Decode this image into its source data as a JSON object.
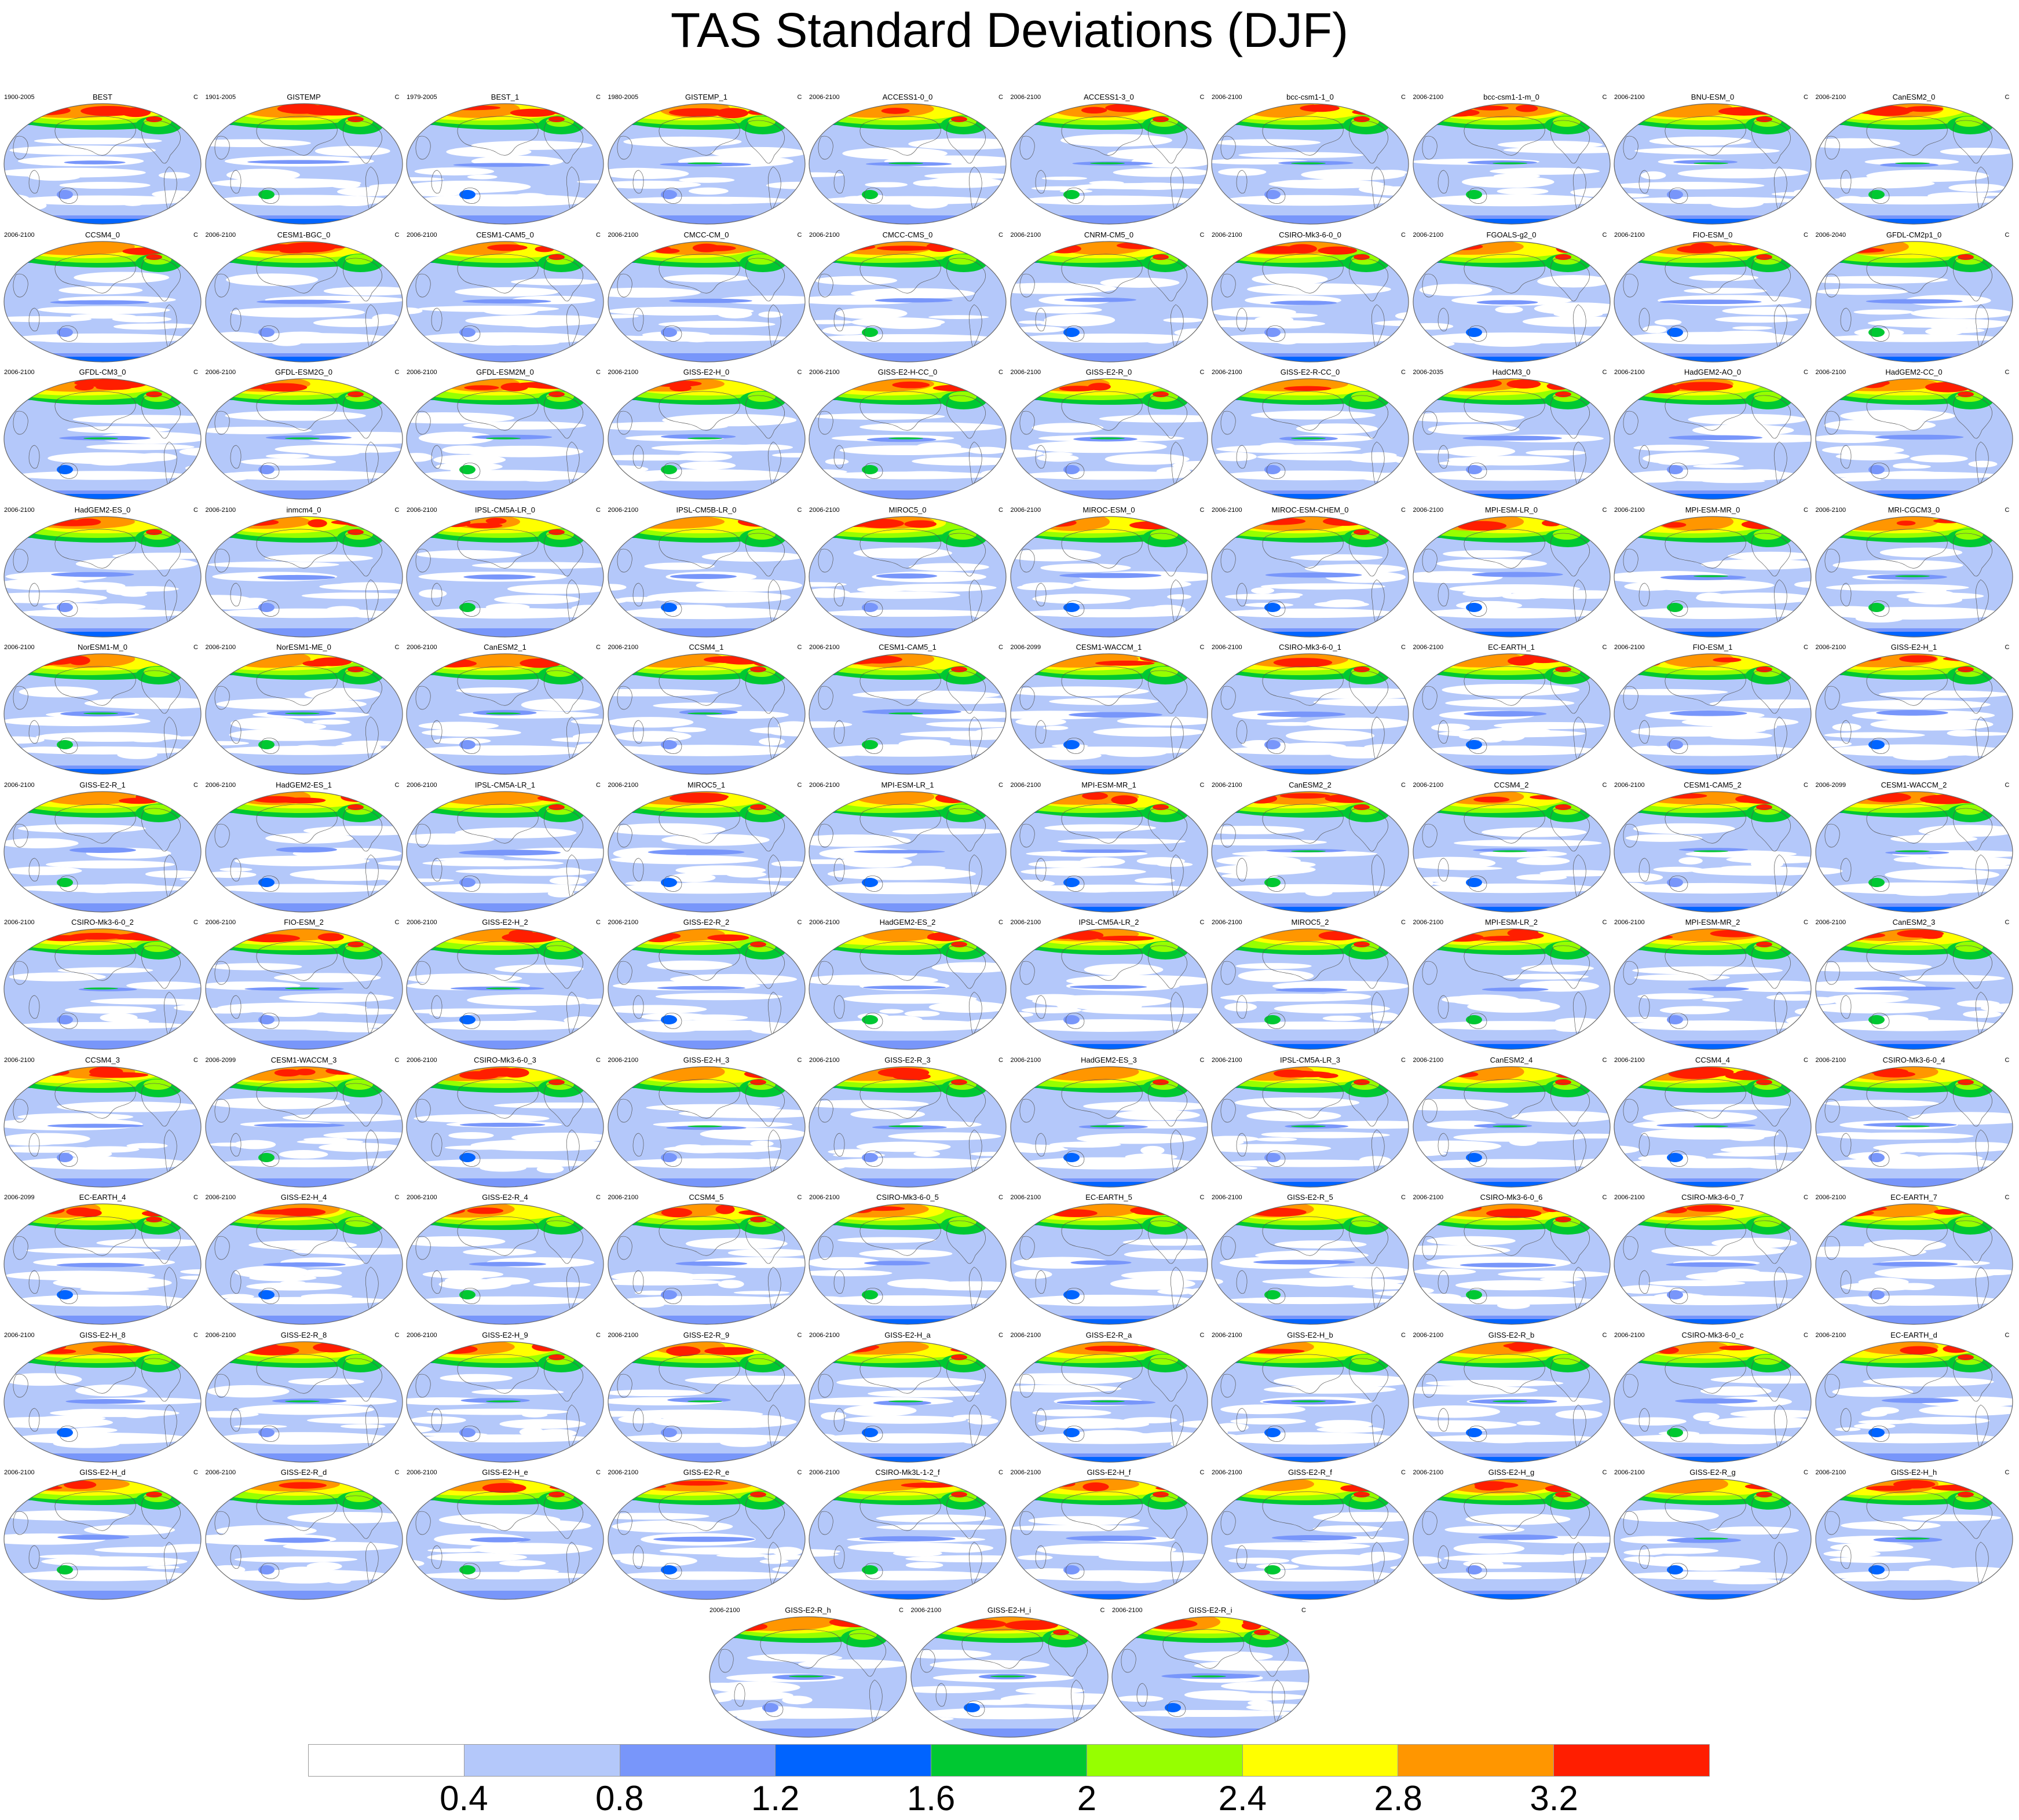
{
  "title": "TAS Standard Deviations (DJF)",
  "units": "C",
  "chart_data": {
    "type": "heatmap",
    "title": "TAS Standard Deviations (DJF)",
    "units": "C",
    "projection": "global Robinson-style, Pacific-centered",
    "panels": [
      {
        "name": "BEST",
        "period": "1900-2005"
      },
      {
        "name": "GISTEMP",
        "period": "1901-2005"
      },
      {
        "name": "BEST_1",
        "period": "1979-2005"
      },
      {
        "name": "GISTEMP_1",
        "period": "1980-2005"
      },
      {
        "name": "ACCESS1-0_0",
        "period": "2006-2100"
      },
      {
        "name": "ACCESS1-3_0",
        "period": "2006-2100"
      },
      {
        "name": "bcc-csm1-1_0",
        "period": "2006-2100"
      },
      {
        "name": "bcc-csm1-1-m_0",
        "period": "2006-2100"
      },
      {
        "name": "BNU-ESM_0",
        "period": "2006-2100"
      },
      {
        "name": "CanESM2_0",
        "period": "2006-2100"
      },
      {
        "name": "CCSM4_0",
        "period": "2006-2100"
      },
      {
        "name": "CESM1-BGC_0",
        "period": "2006-2100"
      },
      {
        "name": "CESM1-CAM5_0",
        "period": "2006-2100"
      },
      {
        "name": "CMCC-CM_0",
        "period": "2006-2100"
      },
      {
        "name": "CMCC-CMS_0",
        "period": "2006-2100"
      },
      {
        "name": "CNRM-CM5_0",
        "period": "2006-2100"
      },
      {
        "name": "CSIRO-Mk3-6-0_0",
        "period": "2006-2100"
      },
      {
        "name": "FGOALS-g2_0",
        "period": "2006-2100"
      },
      {
        "name": "FIO-ESM_0",
        "period": "2006-2100"
      },
      {
        "name": "GFDL-CM2p1_0",
        "period": "2006-2040"
      },
      {
        "name": "GFDL-CM3_0",
        "period": "2006-2100"
      },
      {
        "name": "GFDL-ESM2G_0",
        "period": "2006-2100"
      },
      {
        "name": "GFDL-ESM2M_0",
        "period": "2006-2100"
      },
      {
        "name": "GISS-E2-H_0",
        "period": "2006-2100"
      },
      {
        "name": "GISS-E2-H-CC_0",
        "period": "2006-2100"
      },
      {
        "name": "GISS-E2-R_0",
        "period": "2006-2100"
      },
      {
        "name": "GISS-E2-R-CC_0",
        "period": "2006-2100"
      },
      {
        "name": "HadCM3_0",
        "period": "2006-2035"
      },
      {
        "name": "HadGEM2-AO_0",
        "period": "2006-2100"
      },
      {
        "name": "HadGEM2-CC_0",
        "period": "2006-2100"
      },
      {
        "name": "HadGEM2-ES_0",
        "period": "2006-2100"
      },
      {
        "name": "inmcm4_0",
        "period": "2006-2100"
      },
      {
        "name": "IPSL-CM5A-LR_0",
        "period": "2006-2100"
      },
      {
        "name": "IPSL-CM5B-LR_0",
        "period": "2006-2100"
      },
      {
        "name": "MIROC5_0",
        "period": "2006-2100"
      },
      {
        "name": "MIROC-ESM_0",
        "period": "2006-2100"
      },
      {
        "name": "MIROC-ESM-CHEM_0",
        "period": "2006-2100"
      },
      {
        "name": "MPI-ESM-LR_0",
        "period": "2006-2100"
      },
      {
        "name": "MPI-ESM-MR_0",
        "period": "2006-2100"
      },
      {
        "name": "MRI-CGCM3_0",
        "period": "2006-2100"
      },
      {
        "name": "NorESM1-M_0",
        "period": "2006-2100"
      },
      {
        "name": "NorESM1-ME_0",
        "period": "2006-2100"
      },
      {
        "name": "CanESM2_1",
        "period": "2006-2100"
      },
      {
        "name": "CCSM4_1",
        "period": "2006-2100"
      },
      {
        "name": "CESM1-CAM5_1",
        "period": "2006-2100"
      },
      {
        "name": "CESM1-WACCM_1",
        "period": "2006-2099"
      },
      {
        "name": "CSIRO-Mk3-6-0_1",
        "period": "2006-2100"
      },
      {
        "name": "EC-EARTH_1",
        "period": "2006-2100"
      },
      {
        "name": "FIO-ESM_1",
        "period": "2006-2100"
      },
      {
        "name": "GISS-E2-H_1",
        "period": "2006-2100"
      },
      {
        "name": "GISS-E2-R_1",
        "period": "2006-2100"
      },
      {
        "name": "HadGEM2-ES_1",
        "period": "2006-2100"
      },
      {
        "name": "IPSL-CM5A-LR_1",
        "period": "2006-2100"
      },
      {
        "name": "MIROC5_1",
        "period": "2006-2100"
      },
      {
        "name": "MPI-ESM-LR_1",
        "period": "2006-2100"
      },
      {
        "name": "MPI-ESM-MR_1",
        "period": "2006-2100"
      },
      {
        "name": "CanESM2_2",
        "period": "2006-2100"
      },
      {
        "name": "CCSM4_2",
        "period": "2006-2100"
      },
      {
        "name": "CESM1-CAM5_2",
        "period": "2006-2100"
      },
      {
        "name": "CESM1-WACCM_2",
        "period": "2006-2099"
      },
      {
        "name": "CSIRO-Mk3-6-0_2",
        "period": "2006-2100"
      },
      {
        "name": "FIO-ESM_2",
        "period": "2006-2100"
      },
      {
        "name": "GISS-E2-H_2",
        "period": "2006-2100"
      },
      {
        "name": "GISS-E2-R_2",
        "period": "2006-2100"
      },
      {
        "name": "HadGEM2-ES_2",
        "period": "2006-2100"
      },
      {
        "name": "IPSL-CM5A-LR_2",
        "period": "2006-2100"
      },
      {
        "name": "MIROC5_2",
        "period": "2006-2100"
      },
      {
        "name": "MPI-ESM-LR_2",
        "period": "2006-2100"
      },
      {
        "name": "MPI-ESM-MR_2",
        "period": "2006-2100"
      },
      {
        "name": "CanESM2_3",
        "period": "2006-2100"
      },
      {
        "name": "CCSM4_3",
        "period": "2006-2100"
      },
      {
        "name": "CESM1-WACCM_3",
        "period": "2006-2099"
      },
      {
        "name": "CSIRO-Mk3-6-0_3",
        "period": "2006-2100"
      },
      {
        "name": "GISS-E2-H_3",
        "period": "2006-2100"
      },
      {
        "name": "GISS-E2-R_3",
        "period": "2006-2100"
      },
      {
        "name": "HadGEM2-ES_3",
        "period": "2006-2100"
      },
      {
        "name": "IPSL-CM5A-LR_3",
        "period": "2006-2100"
      },
      {
        "name": "CanESM2_4",
        "period": "2006-2100"
      },
      {
        "name": "CCSM4_4",
        "period": "2006-2100"
      },
      {
        "name": "CSIRO-Mk3-6-0_4",
        "period": "2006-2100"
      },
      {
        "name": "EC-EARTH_4",
        "period": "2006-2099"
      },
      {
        "name": "GISS-E2-H_4",
        "period": "2006-2100"
      },
      {
        "name": "GISS-E2-R_4",
        "period": "2006-2100"
      },
      {
        "name": "CCSM4_5",
        "period": "2006-2100"
      },
      {
        "name": "CSIRO-Mk3-6-0_5",
        "period": "2006-2100"
      },
      {
        "name": "EC-EARTH_5",
        "period": "2006-2100"
      },
      {
        "name": "GISS-E2-R_5",
        "period": "2006-2100"
      },
      {
        "name": "CSIRO-Mk3-6-0_6",
        "period": "2006-2100"
      },
      {
        "name": "CSIRO-Mk3-6-0_7",
        "period": "2006-2100"
      },
      {
        "name": "EC-EARTH_7",
        "period": "2006-2100"
      },
      {
        "name": "GISS-E2-H_8",
        "period": "2006-2100"
      },
      {
        "name": "GISS-E2-R_8",
        "period": "2006-2100"
      },
      {
        "name": "GISS-E2-H_9",
        "period": "2006-2100"
      },
      {
        "name": "GISS-E2-R_9",
        "period": "2006-2100"
      },
      {
        "name": "GISS-E2-H_a",
        "period": "2006-2100"
      },
      {
        "name": "GISS-E2-R_a",
        "period": "2006-2100"
      },
      {
        "name": "GISS-E2-H_b",
        "period": "2006-2100"
      },
      {
        "name": "GISS-E2-R_b",
        "period": "2006-2100"
      },
      {
        "name": "CSIRO-Mk3-6-0_c",
        "period": "2006-2100"
      },
      {
        "name": "EC-EARTH_d",
        "period": "2006-2100"
      },
      {
        "name": "GISS-E2-H_d",
        "period": "2006-2100"
      },
      {
        "name": "GISS-E2-R_d",
        "period": "2006-2100"
      },
      {
        "name": "GISS-E2-H_e",
        "period": "2006-2100"
      },
      {
        "name": "GISS-E2-R_e",
        "period": "2006-2100"
      },
      {
        "name": "CSIRO-Mk3L-1-2_f",
        "period": "2006-2100"
      },
      {
        "name": "GISS-E2-H_f",
        "period": "2006-2100"
      },
      {
        "name": "GISS-E2-R_f",
        "period": "2006-2100"
      },
      {
        "name": "GISS-E2-H_g",
        "period": "2006-2100"
      },
      {
        "name": "GISS-E2-R_g",
        "period": "2006-2100"
      },
      {
        "name": "GISS-E2-H_h",
        "period": "2006-2100"
      },
      {
        "name": "GISS-E2-R_h",
        "period": "2006-2100"
      },
      {
        "name": "GISS-E2-H_i",
        "period": "2006-2100"
      },
      {
        "name": "GISS-E2-R_i",
        "period": "2006-2100"
      }
    ],
    "colorbar": {
      "levels": [
        0.4,
        0.8,
        1.2,
        1.6,
        2,
        2.4,
        2.8,
        3.2
      ],
      "tick_labels": [
        "0.4",
        "0.8",
        "1.2",
        "1.6",
        "2",
        "2.4",
        "2.8",
        "3.2"
      ],
      "colors": [
        "#ffffff",
        "#b4c8fa",
        "#7896fa",
        "#0064ff",
        "#00c832",
        "#96ff00",
        "#ffff00",
        "#ff9600",
        "#ff1e00"
      ]
    }
  }
}
